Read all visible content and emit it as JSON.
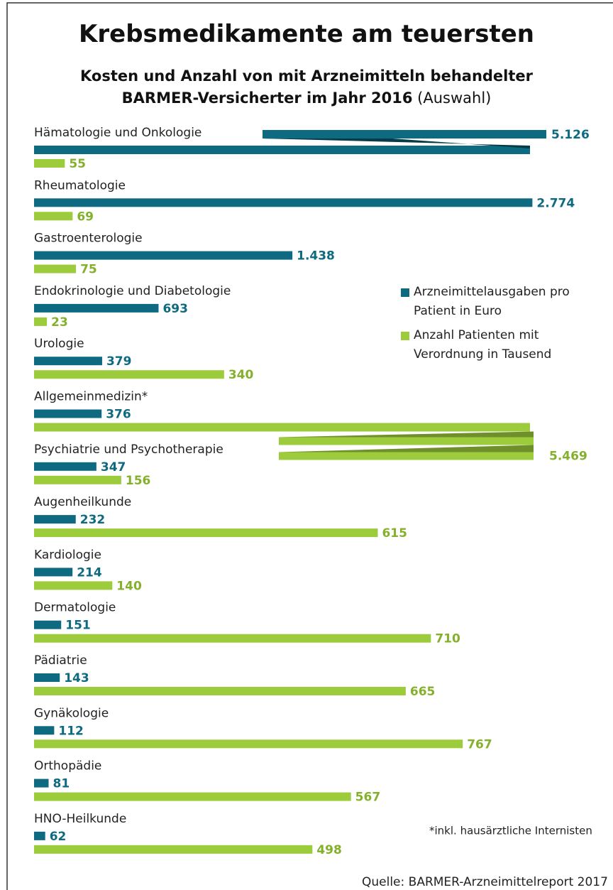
{
  "chart_data": {
    "type": "bar",
    "orientation": "horizontal",
    "title": "Krebsmedikamente am teuersten",
    "subtitle": "Kosten und Anzahl von mit Arzneimitteln behandelter BARMER-Versicherter im Jahr 2016",
    "subtitle_note": "(Auswahl)",
    "categories": [
      "Hämatologie und Onkologie",
      "Rheumatologie",
      "Gastroenterologie",
      "Endokrinologie und Diabetologie",
      "Urologie",
      "Allgemeinmedizin*",
      "Psychiatrie und Psychotherapie",
      "Augenheilkunde",
      "Kardiologie",
      "Dermatologie",
      "Pädiatrie",
      "Gynäkologie",
      "Orthopädie",
      "HNO-Heilkunde"
    ],
    "series": [
      {
        "name": "Arzneimittelausgaben pro Patient in Euro",
        "color": "#0e6a80",
        "label_color": "#0e6a80",
        "values": [
          5126,
          2774,
          1438,
          693,
          379,
          376,
          347,
          232,
          214,
          151,
          143,
          112,
          81,
          62
        ],
        "value_labels": [
          "5.126",
          "2.774",
          "1.438",
          "693",
          "379",
          "376",
          "347",
          "232",
          "214",
          "151",
          "143",
          "112",
          "81",
          "62"
        ]
      },
      {
        "name": "Anzahl Patienten mit Verordnung in Tausend",
        "color": "#9ccb3b",
        "label_color": "#84b02c",
        "axis": "x2",
        "values": [
          55,
          69,
          75,
          23,
          340,
          5469,
          156,
          615,
          140,
          710,
          665,
          767,
          567,
          498
        ],
        "value_labels": [
          "55",
          "69",
          "75",
          "23",
          "340",
          "5.469",
          "156",
          "615",
          "140",
          "710",
          "665",
          "767",
          "567",
          "498"
        ]
      }
    ],
    "xlim": [
      0,
      2800
    ],
    "x2lim": [
      0,
      900
    ],
    "footnote": "*inkl. hausärztliche Internisten",
    "source": "Quelle: BARMER-Arzneimittelreport 2017"
  }
}
